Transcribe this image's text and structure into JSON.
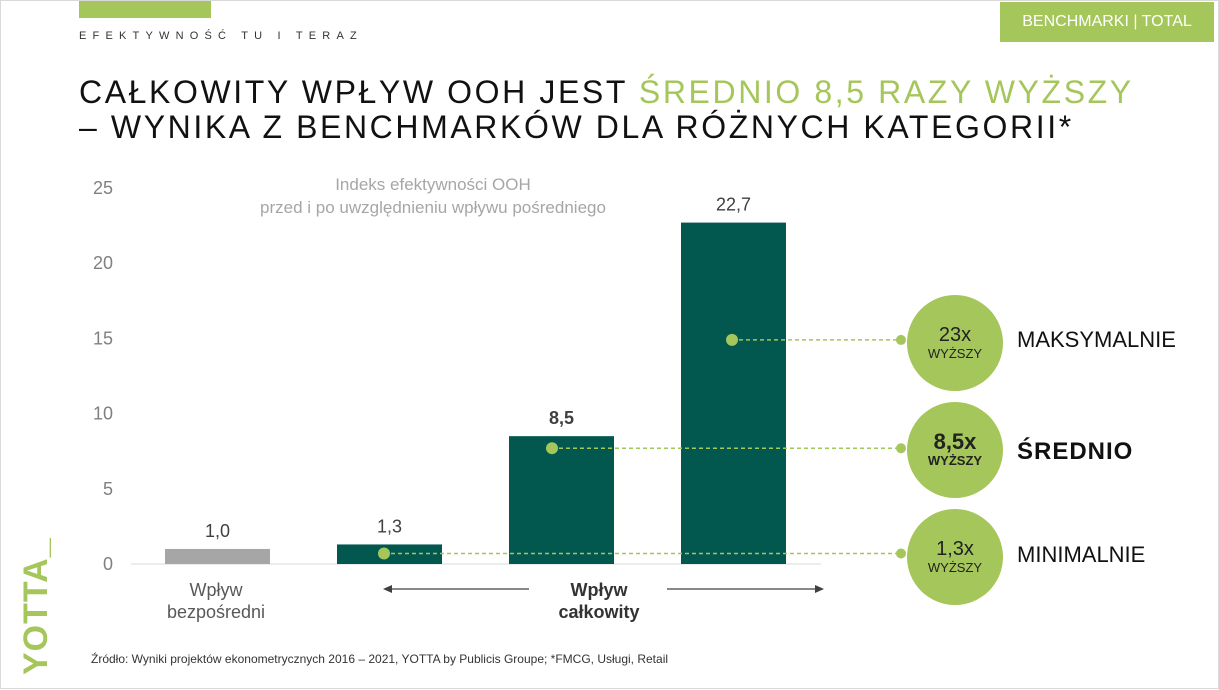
{
  "header": {
    "section_label": "EFEKTYWNOŚĆ TU I TERAZ",
    "tag": "BENCHMARKI | TOTAL",
    "title_part1": "CAŁKOWITY WPŁYW OOH JEST ",
    "title_highlight": "ŚREDNIO 8,5 RAZY WYŻSZY",
    "title_line2": "– WYNIKA Z BENCHMARKÓW DLA RÓŻNYCH KATEGORII*"
  },
  "chart_data": {
    "type": "bar",
    "title_line1": "Indeks efektywności OOH",
    "title_line2": "przed i po uwzględnieniu wpływu pośredniego",
    "ylim": [
      0,
      25
    ],
    "yticks": [
      "0",
      "5",
      "10",
      "15",
      "20",
      "25"
    ],
    "grid": false,
    "bars": [
      {
        "value": 1.0,
        "label": "1,0",
        "color": "#a6a6a6",
        "bold": false
      },
      {
        "value": 1.3,
        "label": "1,3",
        "color": "#02574f",
        "bold": false
      },
      {
        "value": 8.5,
        "label": "8,5",
        "color": "#02574f",
        "bold": true
      },
      {
        "value": 22.7,
        "label": "22,7",
        "color": "#02574f",
        "bold": false
      }
    ],
    "category_direct_line1": "Wpływ",
    "category_direct_line2": "bezpośredni",
    "category_total_line1": "Wpływ",
    "category_total_line2": "całkowity",
    "markers": [
      {
        "bar": 3,
        "value": 14.9
      },
      {
        "bar": 2,
        "value": 7.7
      },
      {
        "bar": 1,
        "value": 0.7
      }
    ]
  },
  "comparisons": [
    {
      "value": "23x",
      "sub": "WYŻSZY",
      "label": "MAKSYMALNIE",
      "bold": false
    },
    {
      "value": "8,5x",
      "sub": "WYŻSZY",
      "label": "ŚREDNIO",
      "bold": true
    },
    {
      "value": "1,3x",
      "sub": "WYŻSZY",
      "label": "MINIMALNIE",
      "bold": false
    }
  ],
  "colors": {
    "accent_green": "#a5c65a",
    "dark_teal": "#02574f",
    "gray": "#a6a6a6"
  },
  "footer": {
    "source": "Źródło: Wyniki projektów ekonometrycznych 2016 – 2021, YOTTA by Publicis Groupe; *FMCG, Usługi, Retail",
    "logo": "YOTTA_"
  }
}
